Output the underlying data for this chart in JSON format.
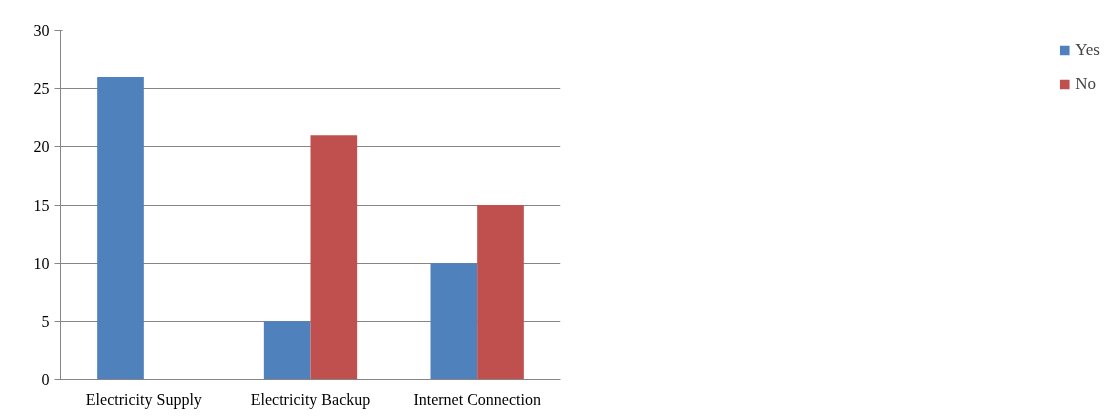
{
  "chart_data": {
    "type": "bar",
    "categories": [
      "Electricity Supply",
      "Electricity Backup",
      "Internet Connection"
    ],
    "series": [
      {
        "name": "Yes",
        "color": "#4f81bd",
        "values": [
          26,
          5,
          10
        ]
      },
      {
        "name": "No",
        "color": "#c0504d",
        "values": [
          0,
          21,
          15
        ]
      }
    ],
    "ylim": [
      0,
      30
    ],
    "yticks": [
      0,
      5,
      10,
      15,
      20,
      25,
      30
    ],
    "grid": "y",
    "legend": "right"
  }
}
